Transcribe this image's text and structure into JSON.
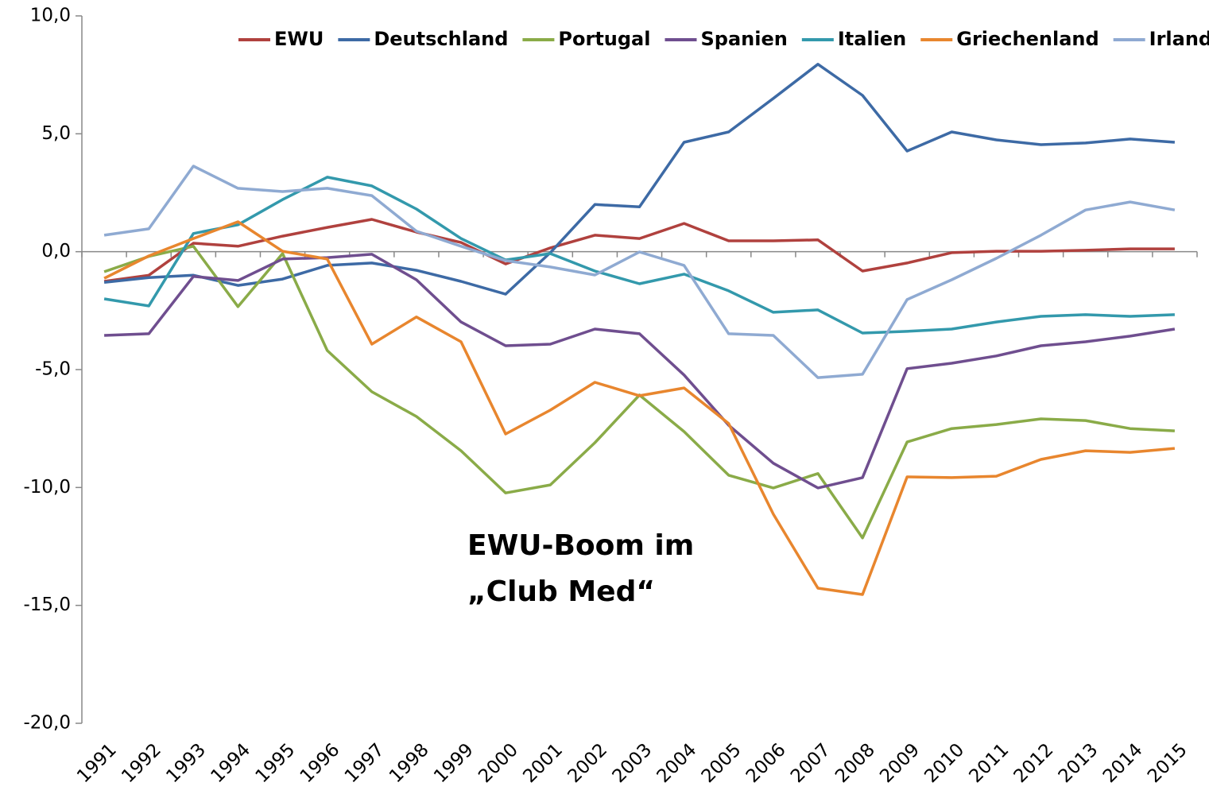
{
  "chart_data": {
    "type": "line",
    "categories": [
      "1991",
      "1992",
      "1993",
      "1994",
      "1995",
      "1996",
      "1997",
      "1998",
      "1999",
      "2000",
      "2001",
      "2002",
      "2003",
      "2004",
      "2005",
      "2006",
      "2007",
      "2008",
      "2009",
      "2010",
      "2011",
      "2012",
      "2013",
      "2014",
      "2015"
    ],
    "series": [
      {
        "name": "EWU",
        "color": "#b0413e",
        "values": [
          -1.26,
          -1.0,
          0.36,
          0.23,
          0.66,
          1.03,
          1.37,
          0.83,
          0.39,
          -0.52,
          0.16,
          0.7,
          0.56,
          1.2,
          0.46,
          0.46,
          0.5,
          -0.82,
          -0.48,
          -0.04,
          0.02,
          0.02,
          0.06,
          0.12,
          0.12
        ]
      },
      {
        "name": "Deutschland",
        "color": "#3d6aa5",
        "values": [
          -1.3,
          -1.1,
          -1.0,
          -1.43,
          -1.16,
          -0.58,
          -0.48,
          -0.79,
          -1.26,
          -1.8,
          -0.04,
          2.0,
          1.9,
          4.64,
          5.08,
          6.5,
          7.95,
          6.63,
          4.27,
          5.08,
          4.74,
          4.54,
          4.61,
          4.78,
          4.64
        ]
      },
      {
        "name": "Portugal",
        "color": "#8aab48",
        "values": [
          -0.85,
          -0.2,
          0.23,
          -2.33,
          -0.08,
          -4.19,
          -5.94,
          -6.99,
          -8.44,
          -10.23,
          -9.89,
          -8.1,
          -6.08,
          -7.63,
          -9.48,
          -10.02,
          -9.41,
          -12.14,
          -8.07,
          -7.5,
          -7.33,
          -7.09,
          -7.16,
          -7.5,
          -7.6
        ]
      },
      {
        "name": "Spanien",
        "color": "#6f4e8f",
        "values": [
          -3.55,
          -3.48,
          -1.05,
          -1.22,
          -0.31,
          -0.25,
          -0.11,
          -1.19,
          -2.98,
          -3.99,
          -3.92,
          -3.28,
          -3.48,
          -5.23,
          -7.36,
          -8.97,
          -10.02,
          -9.58,
          -4.96,
          -4.73,
          -4.42,
          -3.99,
          -3.82,
          -3.58,
          -3.28
        ]
      },
      {
        "name": "Italien",
        "color": "#3399ac",
        "values": [
          -2.0,
          -2.3,
          0.77,
          1.14,
          2.21,
          3.16,
          2.79,
          1.81,
          0.56,
          -0.35,
          -0.08,
          -0.82,
          -1.36,
          -0.95,
          -1.66,
          -2.57,
          -2.47,
          -3.45,
          -3.38,
          -3.28,
          -2.98,
          -2.74,
          -2.67,
          -2.74,
          -2.67
        ]
      },
      {
        "name": "Griechenland",
        "color": "#e8862e",
        "values": [
          -1.13,
          -0.18,
          0.56,
          1.27,
          0.02,
          -0.31,
          -3.92,
          -2.77,
          -3.82,
          -7.73,
          -6.72,
          -5.54,
          -6.11,
          -5.78,
          -7.29,
          -11.13,
          -14.27,
          -14.54,
          -9.55,
          -9.58,
          -9.52,
          -8.81,
          -8.44,
          -8.51,
          -8.34
        ]
      },
      {
        "name": "Irland",
        "color": "#8faad2",
        "values": [
          0.7,
          0.97,
          3.63,
          2.69,
          2.55,
          2.69,
          2.38,
          0.87,
          0.23,
          -0.38,
          -0.65,
          -0.99,
          -0.01,
          -0.58,
          -3.48,
          -3.55,
          -5.34,
          -5.2,
          -2.03,
          -1.19,
          -0.28,
          0.7,
          1.77,
          2.11,
          1.77
        ]
      }
    ],
    "ylim": [
      -20,
      10
    ],
    "yticks": [
      {
        "value": -20,
        "label": "-20,0"
      },
      {
        "value": -15,
        "label": "-15,0"
      },
      {
        "value": -10,
        "label": "-10,0"
      },
      {
        "value": -5,
        "label": "-5,0"
      },
      {
        "value": 0,
        "label": "0,0"
      },
      {
        "value": 5,
        "label": "5,0"
      },
      {
        "value": 10,
        "label": "10,0"
      }
    ],
    "annotation": [
      "EWU-Boom im",
      "„Club Med“"
    ],
    "legend": "top",
    "grid": false
  }
}
